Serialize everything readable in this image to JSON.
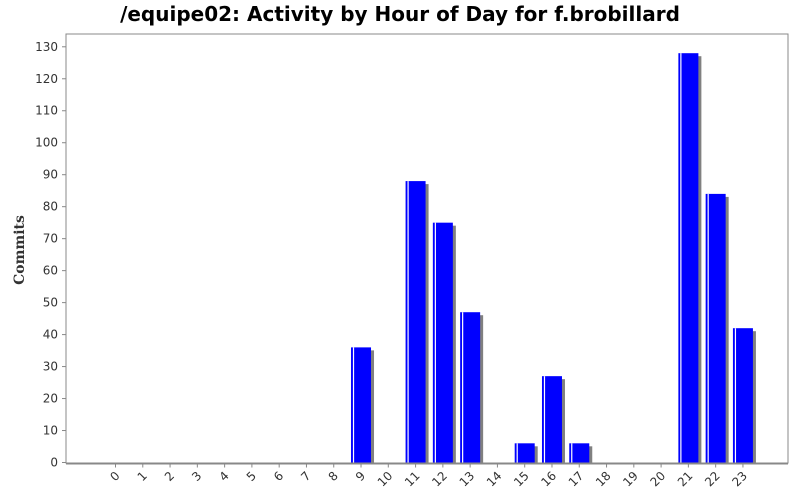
{
  "chart_data": {
    "type": "bar",
    "title": "/equipe02: Activity by Hour of Day for f.brobillard",
    "xlabel": "",
    "ylabel": "Commits",
    "categories": [
      "0",
      "1",
      "2",
      "3",
      "4",
      "5",
      "6",
      "7",
      "8",
      "9",
      "10",
      "11",
      "12",
      "13",
      "14",
      "15",
      "16",
      "17",
      "18",
      "19",
      "20",
      "21",
      "22",
      "23"
    ],
    "values": [
      0,
      0,
      0,
      0,
      0,
      0,
      0,
      0,
      0,
      36,
      0,
      88,
      75,
      47,
      0,
      6,
      27,
      6,
      0,
      0,
      0,
      128,
      84,
      42
    ],
    "ylim": [
      0,
      134
    ],
    "yticks": [
      0,
      10,
      20,
      30,
      40,
      50,
      60,
      70,
      80,
      90,
      100,
      110,
      120,
      130
    ],
    "grid": false,
    "legend": "none",
    "colors": {
      "bar": "#0000ff",
      "shadow": "#808080",
      "highlight": "#ffffff",
      "axis": "#888888",
      "plot_border": "#888888"
    }
  }
}
